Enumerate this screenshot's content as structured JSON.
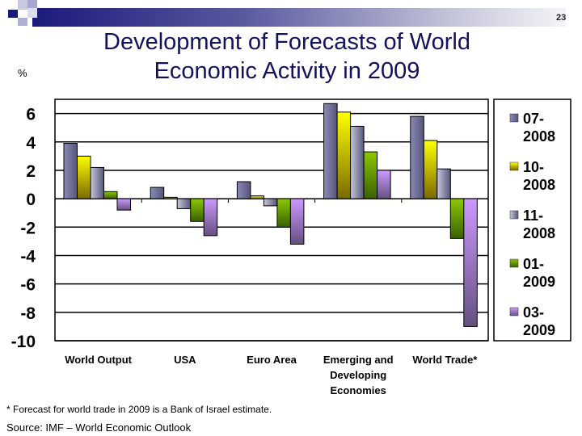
{
  "header": {
    "page_number": "23",
    "title_line1": "Development of Forecasts of World",
    "title_line2": "Economic Activity in 2009",
    "unit": "%"
  },
  "chart_data": {
    "type": "bar",
    "title": "Development of Forecasts of World Economic Activity in 2009",
    "ylabel": "%",
    "ylim": [
      -10,
      7
    ],
    "yticks": [
      6,
      4,
      2,
      0,
      -2,
      -4,
      -6,
      -8,
      -10
    ],
    "grid": true,
    "legend_position": "right",
    "categories": [
      "World Output",
      "USA",
      "Euro Area",
      "Emerging and Developing Economies",
      "World Trade*"
    ],
    "category_label_lines": [
      [
        "World Output"
      ],
      [
        "USA"
      ],
      [
        "Euro Area"
      ],
      [
        "Emerging and",
        "Developing",
        "Economies"
      ],
      [
        "World Trade*"
      ]
    ],
    "series": [
      {
        "name": "07-2008",
        "label_lines": [
          "07-",
          "2008"
        ],
        "color": "#8a8ab8",
        "values": [
          3.9,
          0.8,
          1.2,
          6.7,
          5.8
        ]
      },
      {
        "name": "10-2008",
        "label_lines": [
          "10-",
          "2008"
        ],
        "color": "#ffff00",
        "values": [
          3.0,
          0.1,
          0.2,
          6.1,
          4.1
        ]
      },
      {
        "name": "11-2008",
        "label_lines": [
          "11-",
          "2008"
        ],
        "color": "#c8c8dc",
        "values": [
          2.2,
          -0.7,
          -0.5,
          5.1,
          2.1
        ]
      },
      {
        "name": "01-2009",
        "label_lines": [
          "01-",
          "2009"
        ],
        "color": "#8cc800",
        "values": [
          0.5,
          -1.6,
          -2.0,
          3.3,
          -2.8
        ]
      },
      {
        "name": "03-2009",
        "label_lines": [
          "03-",
          "2009"
        ],
        "color": "#cc99ff",
        "values": [
          -0.8,
          -2.6,
          -3.2,
          2.0,
          -9.0
        ]
      }
    ]
  },
  "footnote": "* Forecast for world trade in 2009 is a Bank of Israel estimate.",
  "source": "Source: IMF – World Economic Outlook"
}
